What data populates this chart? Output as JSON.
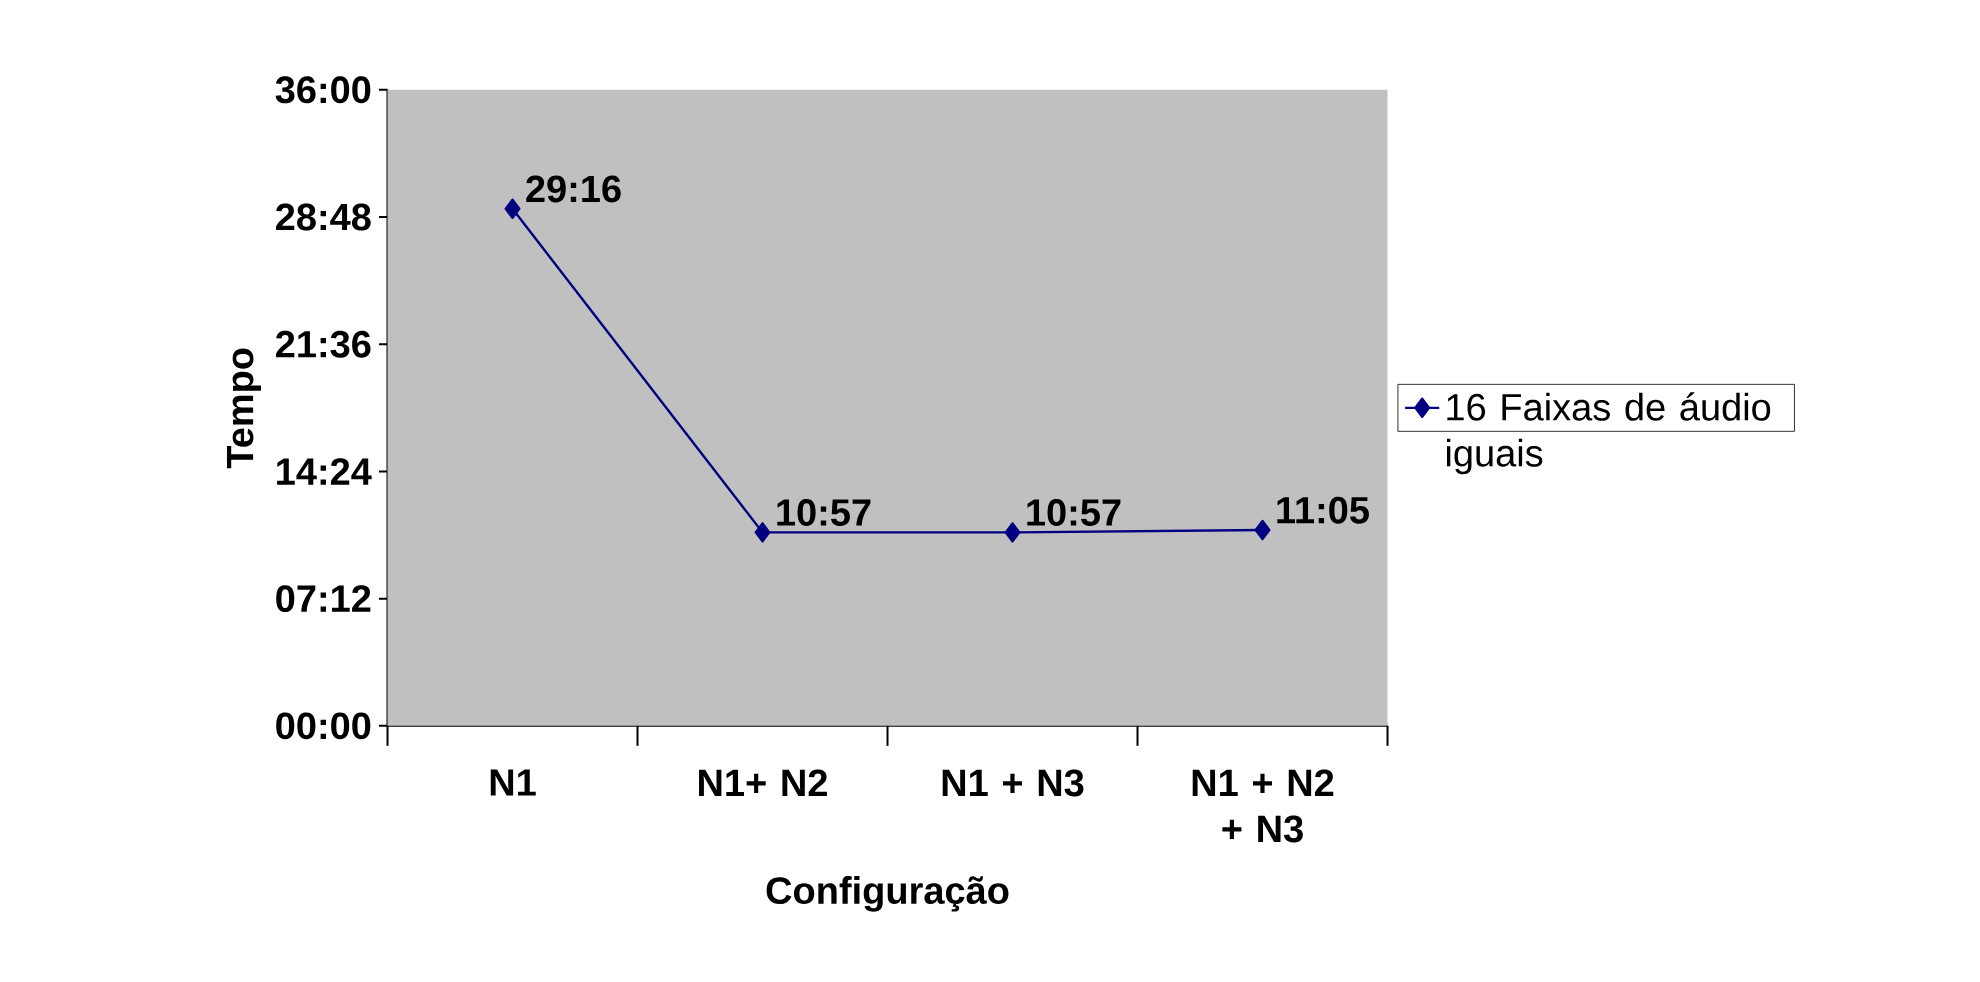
{
  "chart_data": {
    "type": "line",
    "xlabel": "Configuração",
    "ylabel": "Tempo",
    "categories": [
      "N1",
      "N1+ N2",
      "N1 + N3",
      "N1 + N2 + N3"
    ],
    "series": [
      {
        "name": "16 Faixas de áudio iguais",
        "color": "#000080",
        "values": [
          29.267,
          10.95,
          10.95,
          11.083
        ],
        "value_labels": [
          "29:16",
          "10:57",
          "10:57",
          "11:05"
        ]
      }
    ],
    "ylim": [
      0,
      36
    ],
    "yticks": [
      {
        "value": 0,
        "label": "00:00"
      },
      {
        "value": 7.2,
        "label": "07:12"
      },
      {
        "value": 14.4,
        "label": "14:24"
      },
      {
        "value": 21.6,
        "label": "21:36"
      },
      {
        "value": 28.8,
        "label": "28:48"
      },
      {
        "value": 36,
        "label": "36:00"
      }
    ],
    "marker": "diamond",
    "line_style": "solid",
    "legend": "right"
  }
}
